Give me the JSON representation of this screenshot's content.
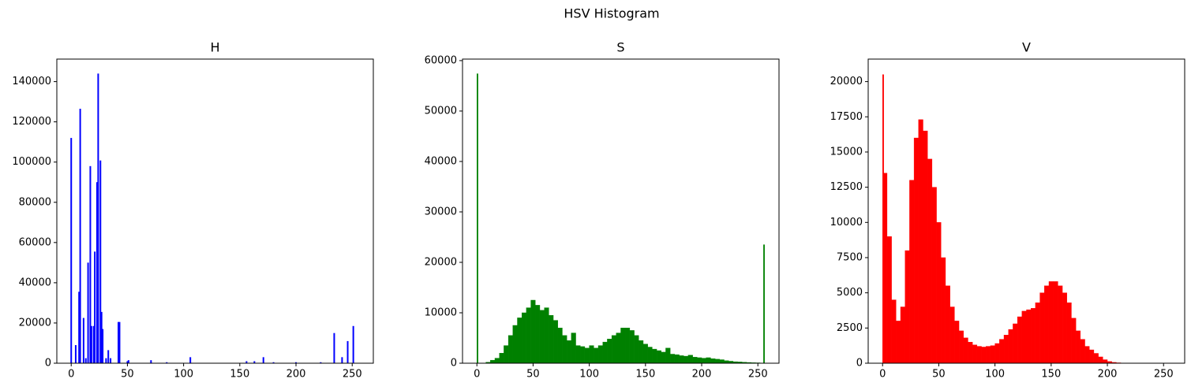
{
  "title": "HSV Histogram",
  "chart_data": [
    {
      "type": "bar",
      "title": "H",
      "color": "#0000ff",
      "x": [
        0,
        4,
        7,
        8,
        11,
        13,
        15,
        17,
        18,
        20,
        21,
        23,
        24,
        26,
        27,
        28,
        31,
        33,
        35,
        42,
        43,
        50,
        51,
        71,
        85,
        106,
        156,
        163,
        171,
        180,
        200,
        222,
        234,
        241,
        246,
        251
      ],
      "values": [
        112000,
        9000,
        35500,
        126500,
        22500,
        2500,
        50000,
        98000,
        18500,
        18500,
        55500,
        90000,
        144000,
        100800,
        25500,
        17000,
        2500,
        6500,
        2500,
        20500,
        20500,
        1000,
        1500,
        1500,
        500,
        3000,
        1000,
        1000,
        3000,
        500,
        500,
        500,
        15000,
        3000,
        11000,
        18500
      ],
      "xlim": [
        -12.8,
        268.8
      ],
      "ylim": [
        0,
        151200
      ],
      "xticks": [
        0,
        50,
        100,
        150,
        200,
        250
      ],
      "yticks": [
        0,
        20000,
        40000,
        60000,
        80000,
        100000,
        120000,
        140000
      ]
    },
    {
      "type": "histogram",
      "title": "S",
      "color": "#008000",
      "bins": [
        0,
        1,
        4,
        8,
        12,
        16,
        20,
        24,
        28,
        32,
        36,
        40,
        44,
        48,
        52,
        56,
        60,
        64,
        68,
        72,
        76,
        80,
        84,
        88,
        92,
        96,
        100,
        104,
        108,
        112,
        116,
        120,
        124,
        128,
        132,
        136,
        140,
        144,
        148,
        152,
        156,
        160,
        164,
        168,
        172,
        176,
        180,
        184,
        188,
        192,
        196,
        200,
        204,
        208,
        212,
        216,
        220,
        224,
        228,
        232,
        236,
        240,
        244,
        248,
        252,
        255,
        256
      ],
      "counts": [
        57400,
        0,
        0,
        200,
        600,
        1000,
        2000,
        3500,
        5500,
        7500,
        9000,
        10000,
        11000,
        12500,
        11500,
        10500,
        11000,
        9500,
        8500,
        7000,
        5500,
        4500,
        6000,
        3500,
        3300,
        3000,
        3500,
        3000,
        3500,
        4200,
        4800,
        5500,
        6000,
        7000,
        7000,
        6500,
        5500,
        4500,
        3800,
        3200,
        2800,
        2500,
        2200,
        3000,
        1800,
        1700,
        1500,
        1400,
        1600,
        1200,
        1100,
        1000,
        1100,
        900,
        800,
        700,
        500,
        400,
        300,
        250,
        200,
        150,
        100,
        80,
        50,
        23500
      ],
      "xlim": [
        -12.8,
        268.8
      ],
      "ylim": [
        0,
        60300
      ],
      "xticks": [
        0,
        50,
        100,
        150,
        200,
        250
      ],
      "yticks": [
        0,
        10000,
        20000,
        30000,
        40000,
        50000,
        60000
      ]
    },
    {
      "type": "histogram",
      "title": "V",
      "color": "#ff0000",
      "bins": [
        0,
        1,
        4,
        8,
        12,
        16,
        20,
        24,
        28,
        32,
        36,
        40,
        44,
        48,
        52,
        56,
        60,
        64,
        68,
        72,
        76,
        80,
        84,
        88,
        92,
        96,
        100,
        104,
        108,
        112,
        116,
        120,
        124,
        128,
        132,
        136,
        140,
        144,
        148,
        152,
        156,
        160,
        164,
        168,
        172,
        176,
        180,
        184,
        188,
        192,
        196,
        200,
        204,
        208,
        212,
        216,
        220,
        224,
        228,
        232,
        236,
        240,
        244,
        248,
        252,
        255,
        256
      ],
      "counts": [
        20500,
        13500,
        9000,
        4500,
        3000,
        4000,
        8000,
        13000,
        16000,
        17300,
        16500,
        14500,
        12500,
        10000,
        7500,
        5500,
        4000,
        3000,
        2300,
        1800,
        1500,
        1300,
        1200,
        1150,
        1200,
        1250,
        1400,
        1700,
        2000,
        2400,
        2800,
        3300,
        3700,
        3800,
        3900,
        4300,
        5000,
        5500,
        5800,
        5800,
        5500,
        5000,
        4300,
        3200,
        2300,
        1700,
        1200,
        950,
        700,
        450,
        250,
        120,
        60,
        30,
        10,
        0,
        0,
        0,
        0,
        0,
        0,
        0,
        0,
        0,
        0,
        0
      ],
      "xlim": [
        -12.8,
        268.8
      ],
      "ylim": [
        0,
        21600
      ],
      "xticks": [
        0,
        50,
        100,
        150,
        200,
        250
      ],
      "yticks": [
        0,
        2500,
        5000,
        7500,
        10000,
        12500,
        15000,
        17500,
        20000
      ]
    }
  ]
}
